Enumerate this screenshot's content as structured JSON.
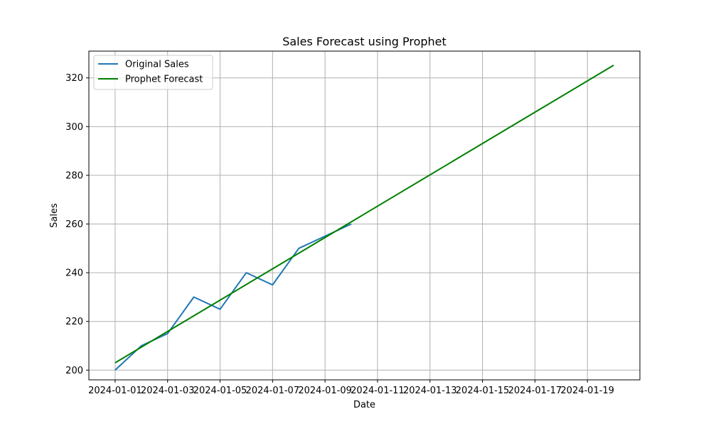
{
  "chart_data": {
    "type": "line",
    "title": "Sales Forecast using Prophet",
    "xlabel": "Date",
    "ylabel": "Sales",
    "x_range": [
      "2023-12-31T00:00",
      "2024-01-21T00:00"
    ],
    "ylim": [
      196,
      331
    ],
    "grid": true,
    "legend_position": "top-left",
    "x_ticks": [
      "2024-01-01",
      "2024-01-03",
      "2024-01-05",
      "2024-01-07",
      "2024-01-09",
      "2024-01-11",
      "2024-01-13",
      "2024-01-15",
      "2024-01-17",
      "2024-01-19"
    ],
    "y_ticks": [
      200,
      220,
      240,
      260,
      280,
      300,
      320
    ],
    "series": [
      {
        "name": "Original Sales",
        "color": "#1f77b4",
        "x": [
          "2024-01-01",
          "2024-01-02",
          "2024-01-03",
          "2024-01-04",
          "2024-01-05",
          "2024-01-06",
          "2024-01-07",
          "2024-01-08",
          "2024-01-09",
          "2024-01-10"
        ],
        "y": [
          200,
          210,
          215,
          230,
          225,
          240,
          235,
          250,
          255,
          260
        ]
      },
      {
        "name": "Prophet Forecast",
        "color": "#008000",
        "x": [
          "2024-01-01",
          "2024-01-20"
        ],
        "y": [
          203,
          325.2
        ]
      }
    ]
  }
}
